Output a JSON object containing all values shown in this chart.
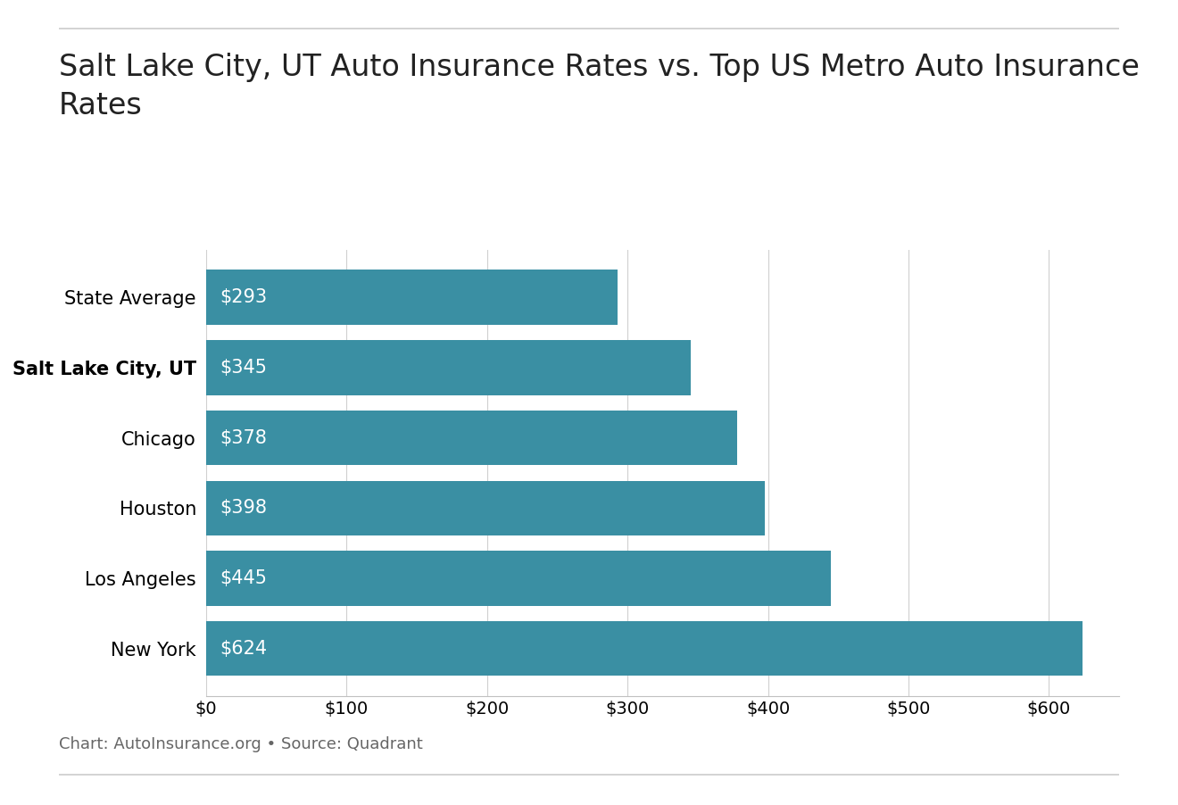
{
  "title": "Salt Lake City, UT Auto Insurance Rates vs. Top US Metro Auto Insurance\nRates",
  "categories": [
    "State Average",
    "Salt Lake City, UT",
    "Chicago",
    "Houston",
    "Los Angeles",
    "New York"
  ],
  "values": [
    293,
    345,
    378,
    398,
    445,
    624
  ],
  "bar_color": "#3a8fa3",
  "label_color": "#ffffff",
  "bar_labels": [
    "$293",
    "$345",
    "$378",
    "$398",
    "$445",
    "$624"
  ],
  "bold_category": "Salt Lake City, UT",
  "xlim": [
    0,
    650
  ],
  "xticks": [
    0,
    100,
    200,
    300,
    400,
    500,
    600
  ],
  "xtick_labels": [
    "$0",
    "$100",
    "$200",
    "$300",
    "$400",
    "$500",
    "$600"
  ],
  "caption": "Chart: AutoInsurance.org • Source: Quadrant",
  "background_color": "#ffffff",
  "title_fontsize": 24,
  "label_fontsize": 15,
  "ytick_fontsize": 15,
  "xtick_fontsize": 14,
  "caption_fontsize": 13,
  "bar_height": 0.78
}
